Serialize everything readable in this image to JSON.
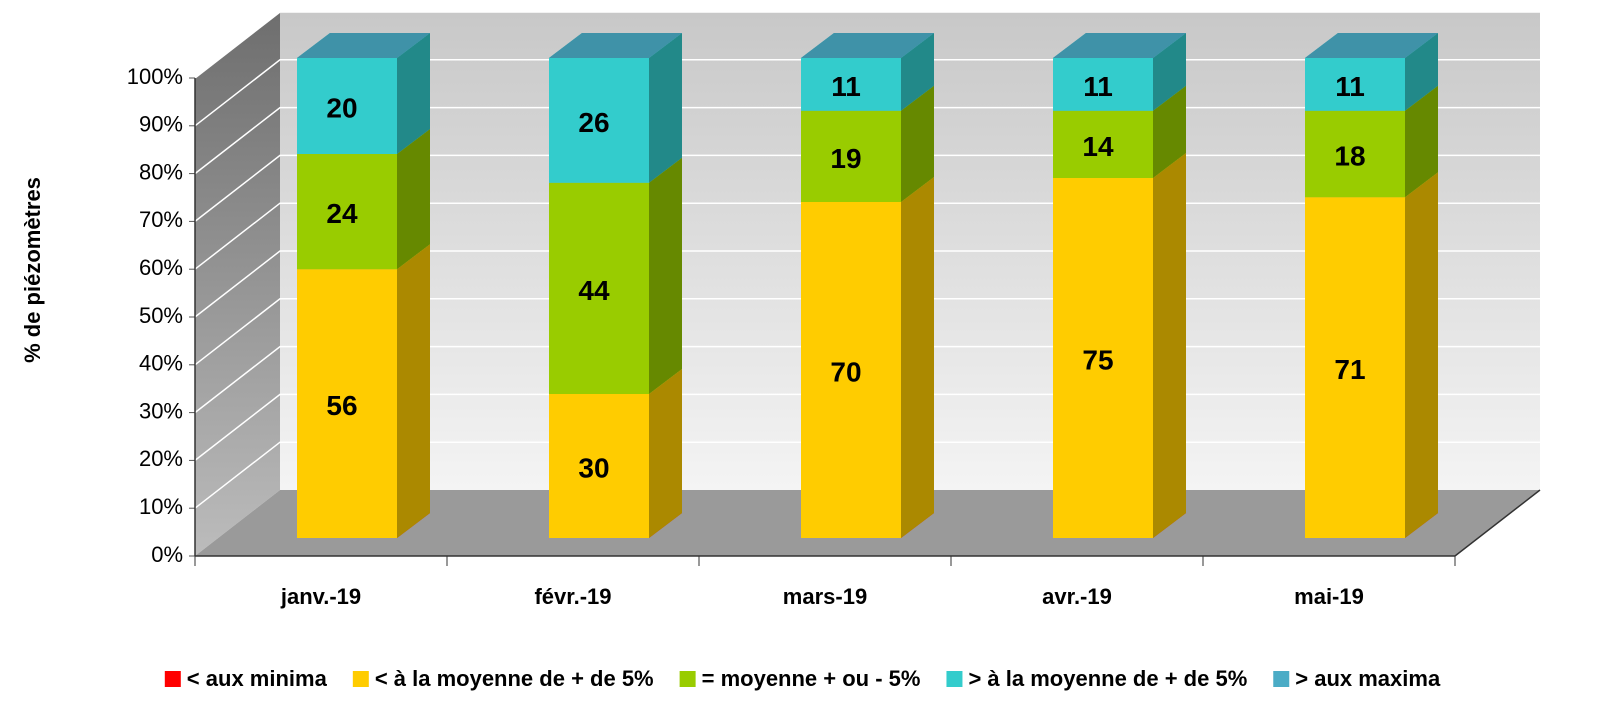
{
  "chart_data": {
    "type": "bar",
    "stacked": true,
    "y_label": "% de piézomètres",
    "categories": [
      "janv.-19",
      "févr.-19",
      "mars-19",
      "avr.-19",
      "mai-19"
    ],
    "series": [
      {
        "name": "< aux minima",
        "color": "#ff0000",
        "values": [
          0,
          0,
          0,
          0,
          0
        ]
      },
      {
        "name": "< à la moyenne de + de 5%",
        "color": "#ffcc00",
        "values": [
          56,
          30,
          70,
          75,
          71
        ]
      },
      {
        "name": "= moyenne + ou - 5%",
        "color": "#99cc00",
        "values": [
          24,
          44,
          19,
          14,
          18
        ]
      },
      {
        "name": "> à la moyenne de + de 5%",
        "color": "#33cccc",
        "values": [
          20,
          26,
          11,
          11,
          11
        ]
      },
      {
        "name": "> aux maxima",
        "color": "#4bacc6",
        "values": [
          0,
          0,
          0,
          0,
          0
        ]
      }
    ],
    "ylim": [
      0,
      100
    ],
    "yticks": [
      {
        "value": 0,
        "label": "0%"
      },
      {
        "value": 10,
        "label": "10%"
      },
      {
        "value": 20,
        "label": "20%"
      },
      {
        "value": 30,
        "label": "30%"
      },
      {
        "value": 40,
        "label": "40%"
      },
      {
        "value": 50,
        "label": "50%"
      },
      {
        "value": 60,
        "label": "60%"
      },
      {
        "value": 70,
        "label": "70%"
      },
      {
        "value": 80,
        "label": "80%"
      },
      {
        "value": 90,
        "label": "90%"
      },
      {
        "value": 100,
        "label": "100%"
      }
    ],
    "grid": true,
    "legend": "bottom"
  }
}
